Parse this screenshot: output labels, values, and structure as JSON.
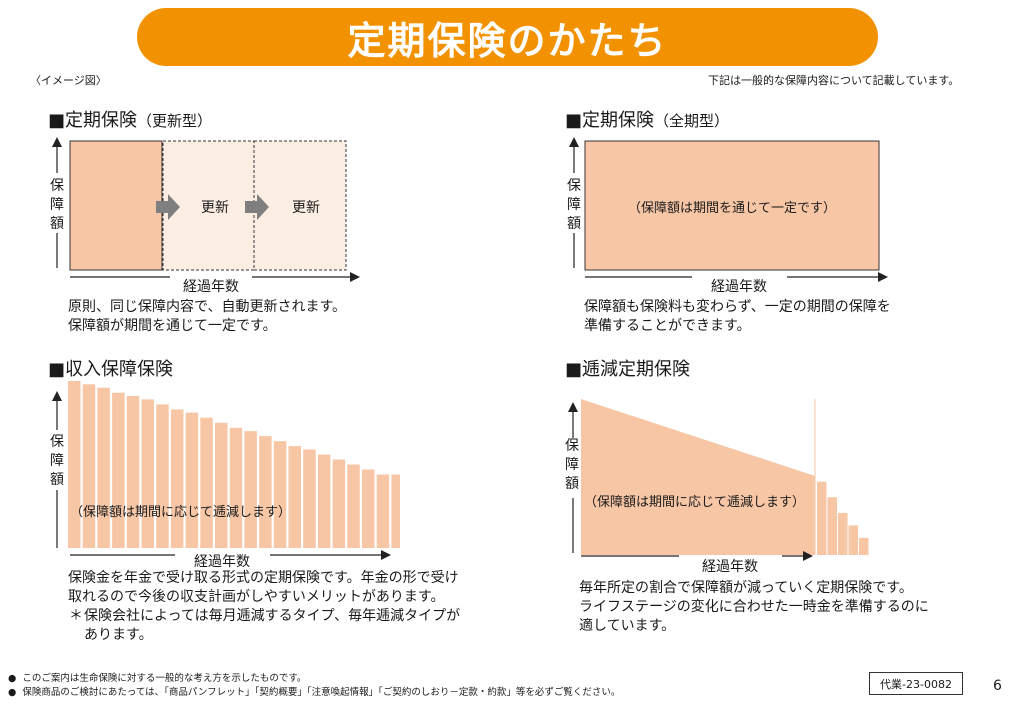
{
  "header": {
    "title": "定期保険のかたち",
    "image_note": "〈イメージ図〉",
    "disclaimer": "下記は一般的な保障内容について記載しています。"
  },
  "sections": {
    "renewal": {
      "title": "■定期保険",
      "subtitle": "（更新型）",
      "y_label": [
        "保",
        "障",
        "額"
      ],
      "x_label": "経過年数",
      "renew_labels": [
        "更新",
        "更新"
      ],
      "description": [
        "原則、同じ保障内容で、自動更新されます。",
        "保障額が期間を通じて一定です。"
      ]
    },
    "full_term": {
      "title": "■定期保険",
      "subtitle": "（全期型）",
      "y_label": [
        "保",
        "障",
        "額"
      ],
      "x_label": "経過年数",
      "inner_label": "（保障額は期間を通じて一定です）",
      "description": [
        "保障額も保険料も変わらず、一定の期間の保障を",
        "準備することができます。"
      ]
    },
    "income": {
      "title": "■収入保障保険",
      "y_label": [
        "保",
        "障",
        "額"
      ],
      "x_label": "経過年数",
      "inner_label": "（保障額は期間に応じて逓減します）",
      "bar_levels": [
        1.0,
        0.98,
        0.96,
        0.93,
        0.91,
        0.89,
        0.86,
        0.83,
        0.81,
        0.78,
        0.75,
        0.72,
        0.7,
        0.67,
        0.64,
        0.61,
        0.59,
        0.56,
        0.53,
        0.5,
        0.47,
        0.44,
        0.44,
        0.44,
        0.44,
        0.44
      ],
      "description": [
        "保険金を年金で受け取る形式の定期保険です。年金の形で受け",
        "取れるので今後の収支計画がしやすいメリットがあります。"
      ],
      "note_mark": "＊",
      "note": [
        "保険会社によっては毎月逓減するタイプ、毎年逓減タイプが",
        "あります。"
      ]
    },
    "decreasing": {
      "title": "■逓減定期保険",
      "y_label": [
        "保",
        "障",
        "額"
      ],
      "x_label": "経過年数",
      "inner_label": "（保障額は期間に応じて逓減します）",
      "step_levels": [
        0.47,
        0.37,
        0.27,
        0.19,
        0.11
      ],
      "description": [
        "毎年所定の割合で保障額が減っていく定期保険です。",
        "ライフステージの変化に合わせた一時金を準備するのに",
        "適しています。"
      ]
    }
  },
  "footer": {
    "bullet": "●",
    "notes": [
      "このご案内は生命保険に対する一般的な考え方を示したものです。",
      "保険商品のご検討にあたっては、「商品パンフレット」「契約概要」「注意喚起情報」「ご契約のしおり－定款・約款」等を必ずご覧ください。"
    ],
    "code": "代業-23-0082",
    "page_number": "6"
  },
  "colors": {
    "accent": "#f39200",
    "fill_strong": "#f7c6a5",
    "fill_light": "#fdeee4",
    "arrow_gray": "#7f7f7f"
  }
}
